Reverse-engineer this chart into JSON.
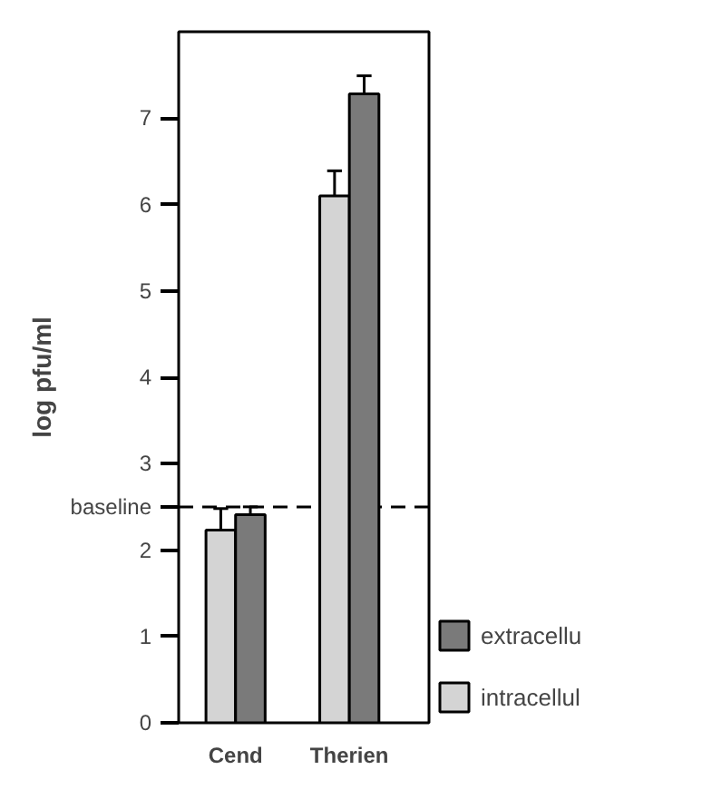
{
  "chart_data": {
    "type": "bar",
    "ylabel": "log pfu/ml",
    "categories": [
      "Cend",
      "Therien"
    ],
    "series": [
      {
        "name": "intracellul",
        "color": "#d4d4d4",
        "values": [
          2.23,
          6.1
        ],
        "errors": [
          [
            2.23,
            2.48
          ],
          [
            6.1,
            6.39
          ]
        ]
      },
      {
        "name": "extracellu",
        "color": "#7a7a7a",
        "values": [
          2.41,
          7.28
        ],
        "errors": [
          [
            2.41,
            2.5
          ],
          [
            7.28,
            7.49
          ]
        ]
      }
    ],
    "ylim": [
      0,
      8
    ],
    "yticks": [
      0,
      1,
      2,
      3,
      4,
      5,
      6,
      7
    ],
    "ref_lines": [
      {
        "axis": "y",
        "value": 2.5,
        "label": "baseline",
        "line_style": "dashed"
      }
    ],
    "grid": false,
    "legend": "bottom right"
  }
}
